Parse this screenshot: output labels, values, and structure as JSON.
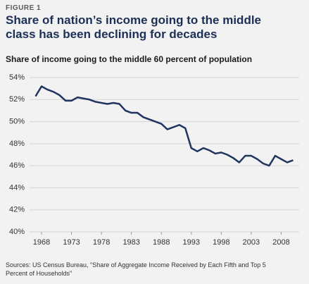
{
  "chart_data": {
    "type": "line",
    "label": "FIGURE 1",
    "title": "Share of nation’s income going to the middle class has been declining for decades",
    "subtitle": "Share of income going to the middle 60 percent of population",
    "source": "Sources: US Census Bureau, \"Share of Aggregate Income Received by Each Fifth and Top 5 Percent of Households\"",
    "x": [
      1967,
      1968,
      1969,
      1970,
      1971,
      1972,
      1973,
      1974,
      1975,
      1976,
      1977,
      1978,
      1979,
      1980,
      1981,
      1982,
      1983,
      1984,
      1985,
      1986,
      1987,
      1988,
      1989,
      1990,
      1991,
      1992,
      1993,
      1994,
      1995,
      1996,
      1997,
      1998,
      1999,
      2000,
      2001,
      2002,
      2003,
      2004,
      2005,
      2006,
      2007,
      2008,
      2009,
      2010
    ],
    "values": [
      52.3,
      53.2,
      52.9,
      52.7,
      52.4,
      51.9,
      51.9,
      52.2,
      52.1,
      52.0,
      51.8,
      51.7,
      51.6,
      51.7,
      51.6,
      51.0,
      50.8,
      50.8,
      50.4,
      50.2,
      50.0,
      49.8,
      49.3,
      49.5,
      49.7,
      49.4,
      47.6,
      47.3,
      47.6,
      47.4,
      47.1,
      47.2,
      47.0,
      46.7,
      46.3,
      46.9,
      46.9,
      46.6,
      46.2,
      46.0,
      46.9,
      46.6,
      46.3,
      46.5
    ],
    "color": "#1f3560",
    "xlim": [
      1966,
      2011
    ],
    "xticks": [
      1968,
      1973,
      1978,
      1983,
      1988,
      1993,
      1998,
      2003,
      2008
    ],
    "ylim": [
      40,
      54
    ],
    "yticks": [
      {
        "value": 40,
        "label": "40%"
      },
      {
        "value": 42,
        "label": "42%"
      },
      {
        "value": 44,
        "label": "44%"
      },
      {
        "value": 46,
        "label": "46%"
      },
      {
        "value": 48,
        "label": "48%"
      },
      {
        "value": 50,
        "label": "50%"
      },
      {
        "value": 52,
        "label": "52%"
      },
      {
        "value": 54,
        "label": "54%"
      }
    ],
    "grid": true
  }
}
